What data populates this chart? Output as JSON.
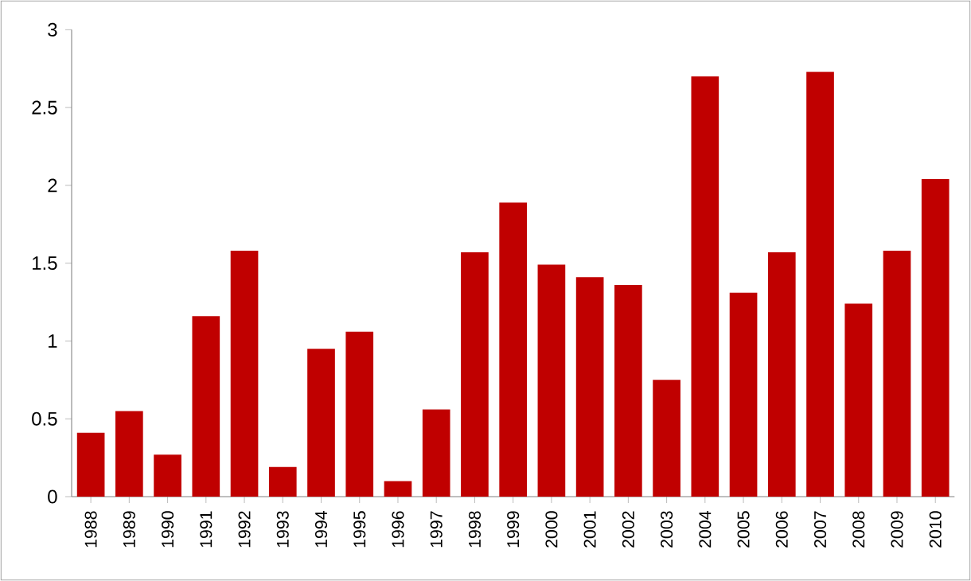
{
  "chart_data": {
    "type": "bar",
    "categories": [
      "1988",
      "1989",
      "1990",
      "1991",
      "1992",
      "1993",
      "1994",
      "1995",
      "1996",
      "1997",
      "1998",
      "1999",
      "2000",
      "2001",
      "2002",
      "2003",
      "2004",
      "2005",
      "2006",
      "2007",
      "2008",
      "2009",
      "2010"
    ],
    "values": [
      0.41,
      0.55,
      0.27,
      1.16,
      1.58,
      0.19,
      0.95,
      1.06,
      0.1,
      0.56,
      1.57,
      1.89,
      1.49,
      1.41,
      1.36,
      0.75,
      2.7,
      1.31,
      1.57,
      2.73,
      1.24,
      1.58,
      2.04
    ],
    "color": "#c00000",
    "ylim": [
      0,
      3
    ],
    "yticks": [
      0,
      0.5,
      1,
      1.5,
      2,
      2.5,
      3
    ]
  }
}
